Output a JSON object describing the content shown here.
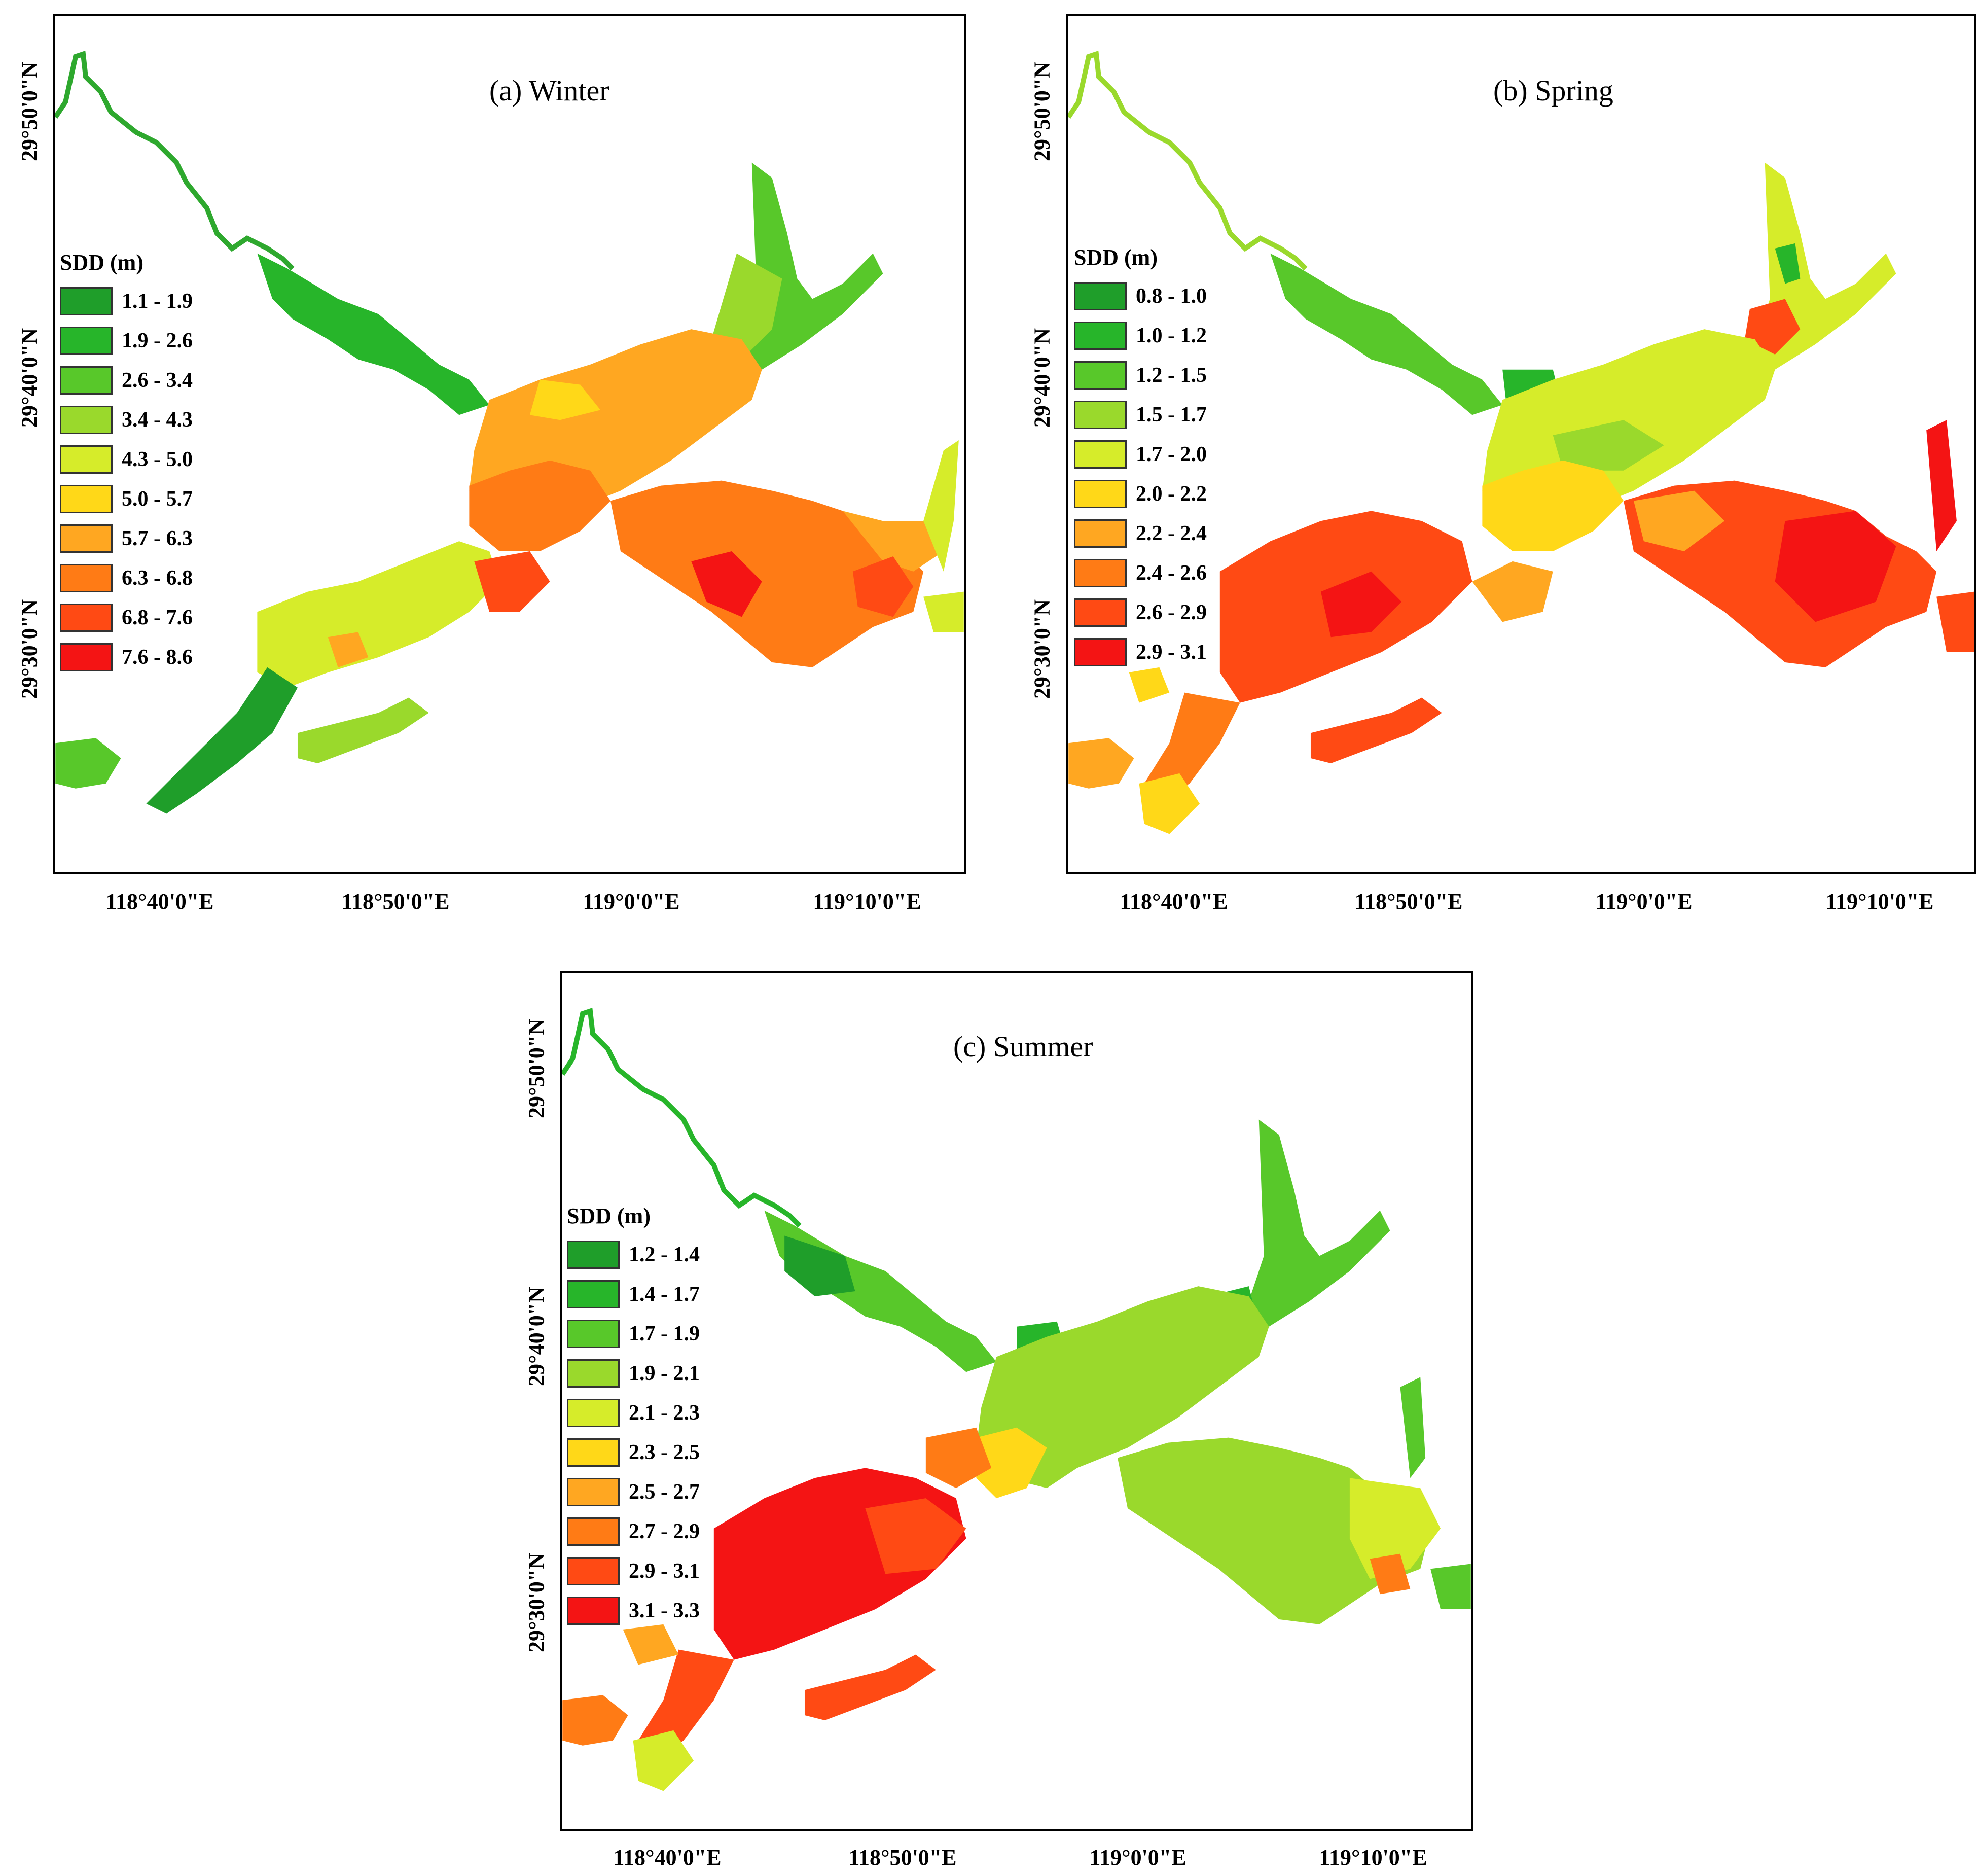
{
  "legend_title": "SDD (m)",
  "x_ticks": [
    "118°40'0\"E",
    "118°50'0\"E",
    "119°0'0\"E",
    "119°10'0\"E"
  ],
  "y_ticks": [
    "29°50'0\"N",
    "29°40'0\"N",
    "29°30'0\"N"
  ],
  "colors": [
    "#1f9e2a",
    "#27b52a",
    "#58c82a",
    "#9ad92c",
    "#d6ec2a",
    "#ffd818",
    "#ffa721",
    "#ff7b15",
    "#ff4a14",
    "#f41414"
  ],
  "panels": [
    {
      "id": "winter",
      "title": "(a) Winter",
      "classes": [
        "1.1 - 1.9",
        "1.9 - 2.6",
        "2.6 - 3.4",
        "3.4 - 4.3",
        "4.3 - 5.0",
        "5.0 - 5.7",
        "5.7 - 6.3",
        "6.3 - 6.8",
        "6.8 - 7.6",
        "7.6 - 8.6"
      ]
    },
    {
      "id": "spring",
      "title": "(b) Spring",
      "classes": [
        "0.8 - 1.0",
        "1.0 - 1.2",
        "1.2 - 1.5",
        "1.5 - 1.7",
        "1.7 - 2.0",
        "2.0 - 2.2",
        "2.2 - 2.4",
        "2.4 - 2.6",
        "2.6 - 2.9",
        "2.9 - 3.1"
      ]
    },
    {
      "id": "summer",
      "title": "(c) Summer",
      "classes": [
        "1.2 - 1.4",
        "1.4 - 1.7",
        "1.7 - 1.9",
        "1.9 - 2.1",
        "2.1 - 2.3",
        "2.3 - 2.5",
        "2.5 - 2.7",
        "2.7 - 2.9",
        "2.9 - 3.1",
        "3.1 - 3.3"
      ]
    }
  ]
}
